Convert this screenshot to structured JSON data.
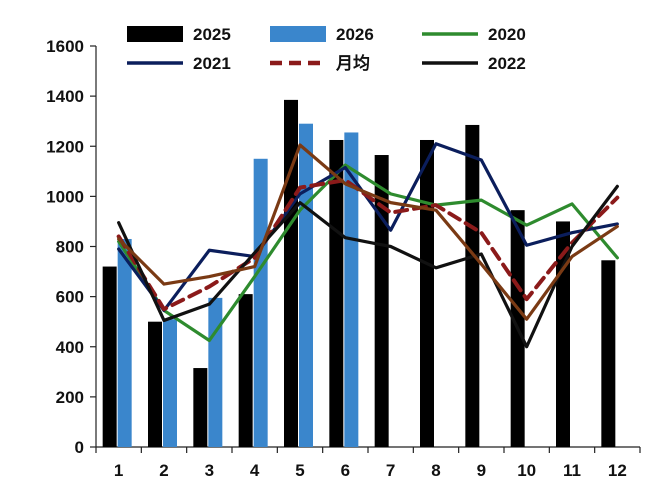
{
  "chart_data": {
    "type": "bar",
    "title": "",
    "xlabel": "",
    "ylabel": "",
    "categories": [
      "1",
      "2",
      "3",
      "4",
      "5",
      "6",
      "7",
      "8",
      "9",
      "10",
      "11",
      "12"
    ],
    "ylim": [
      0,
      1600
    ],
    "yticks": [
      0,
      200,
      400,
      600,
      800,
      1000,
      1200,
      1400,
      1600
    ],
    "legend_position": "top",
    "bar_series": [
      {
        "name": "2025",
        "color": "#000000",
        "values": [
          720,
          500,
          315,
          610,
          1385,
          1225,
          1165,
          1225,
          1285,
          945,
          900,
          745
        ]
      },
      {
        "name": "2026",
        "color": "#3a86cc",
        "values": [
          830,
          510,
          595,
          1150,
          1290,
          1255,
          null,
          null,
          null,
          null,
          null,
          null
        ]
      }
    ],
    "line_series": [
      {
        "name": "2020",
        "color": "#2e8b2e",
        "dash": false,
        "values": [
          820,
          545,
          425,
          680,
          945,
          1125,
          1010,
          965,
          985,
          885,
          970,
          755
        ]
      },
      {
        "name": "2021",
        "color": "#0b1e5c",
        "dash": false,
        "values": [
          790,
          545,
          785,
          760,
          1010,
          1115,
          865,
          1210,
          1145,
          805,
          855,
          890
        ]
      },
      {
        "name": "月均",
        "color": "#8b1a1a",
        "dash": true,
        "values": [
          840,
          550,
          640,
          755,
          1035,
          1065,
          935,
          965,
          855,
          590,
          815,
          995
        ]
      },
      {
        "name": "2022",
        "color": "#111111",
        "dash": false,
        "values": [
          895,
          505,
          570,
          775,
          975,
          835,
          800,
          715,
          770,
          400,
          800,
          1040
        ]
      },
      {
        "name": "",
        "color": "#7a3a14",
        "dash": false,
        "values": [
          830,
          650,
          680,
          720,
          1205,
          1050,
          975,
          945,
          730,
          510,
          760,
          880
        ]
      }
    ]
  }
}
